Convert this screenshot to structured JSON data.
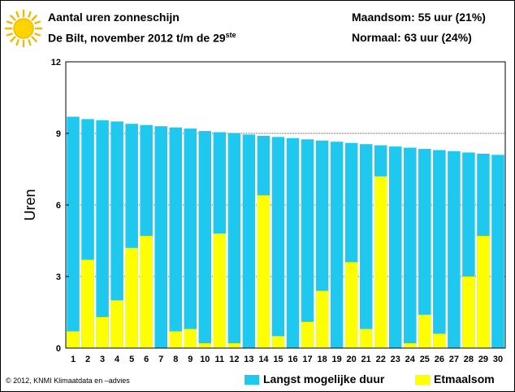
{
  "header": {
    "title": "Aantal uren zonneschijn",
    "subtitle_main": "De Bilt, november 2012 t/m de 29",
    "subtitle_sup": "ste",
    "month_sum": "Maandsom: 55 uur (21%)",
    "normal": "Normaal: 63 uur (24%)"
  },
  "footer": {
    "copyright": "© 2012, KNMI Klimaatdata en –advies"
  },
  "colors": {
    "max_duration": "#1ec8ef",
    "daily_sum": "#ffff00",
    "sun": "#f5b800"
  },
  "icons": {
    "logo": "sun-icon"
  },
  "chart_data": {
    "type": "bar",
    "ylabel": "Uren",
    "ylim": [
      0,
      12
    ],
    "yticks": [
      0,
      3,
      6,
      9,
      12
    ],
    "grid": true,
    "legend_position": "bottom-right",
    "categories": [
      "1",
      "2",
      "3",
      "4",
      "5",
      "6",
      "7",
      "8",
      "9",
      "10",
      "11",
      "12",
      "13",
      "14",
      "15",
      "16",
      "17",
      "18",
      "19",
      "20",
      "21",
      "22",
      "23",
      "24",
      "25",
      "26",
      "27",
      "28",
      "29",
      "30"
    ],
    "series": [
      {
        "name": "Langst mogelijke duur",
        "values": [
          9.7,
          9.6,
          9.55,
          9.5,
          9.4,
          9.35,
          9.3,
          9.25,
          9.2,
          9.1,
          9.05,
          9.0,
          8.95,
          8.9,
          8.85,
          8.8,
          8.75,
          8.7,
          8.65,
          8.6,
          8.55,
          8.5,
          8.45,
          8.4,
          8.35,
          8.3,
          8.25,
          8.2,
          8.15,
          8.1
        ]
      },
      {
        "name": "Etmaalsom",
        "values": [
          0.7,
          3.7,
          1.3,
          2.0,
          4.2,
          4.7,
          0.0,
          0.7,
          0.8,
          0.2,
          4.8,
          0.2,
          0.0,
          6.4,
          0.5,
          0.0,
          1.1,
          2.4,
          0.0,
          3.6,
          0.8,
          7.2,
          0.0,
          0.2,
          1.4,
          0.6,
          0.0,
          3.0,
          4.7,
          null
        ]
      }
    ]
  }
}
